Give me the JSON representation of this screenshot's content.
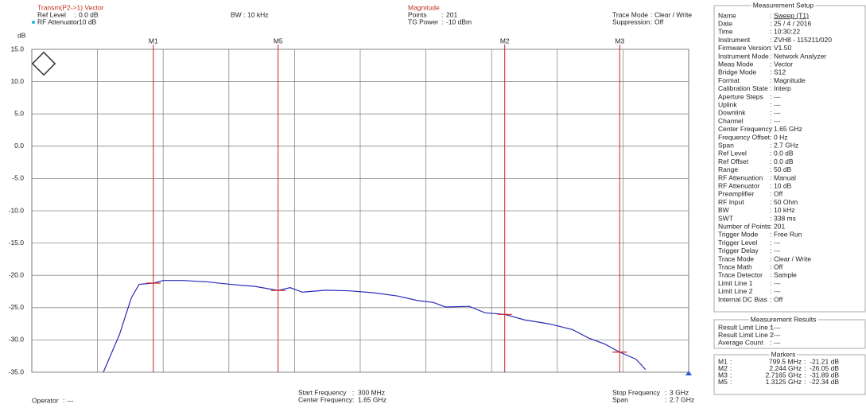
{
  "header": {
    "title": "Transm(P2->1) Vector",
    "ref_level": {
      "label": "Ref Level",
      "value": "0.0 dB"
    },
    "rf_attenuator": {
      "label": "RF Attenuator",
      "value": "10 dB"
    },
    "bw": {
      "label": "BW",
      "value": "10 kHz"
    },
    "format": "Magnitude",
    "points": {
      "label": "Points",
      "value": "201"
    },
    "tg_power": {
      "label": "TG Power",
      "value": "-10 dBm"
    },
    "trace_mode": {
      "label": "Trace Mode",
      "value": "Clear / Write"
    },
    "suppression": {
      "label": "Suppression",
      "value": "Off"
    }
  },
  "footer": {
    "operator": {
      "label": "Operator",
      "value": "---"
    },
    "start": {
      "label": "Start Frequency",
      "value": "300 MHz"
    },
    "center": {
      "label": "Center Frequency",
      "value": "1.65 GHz"
    },
    "stop": {
      "label": "Stop Frequency",
      "value": "3 GHz"
    },
    "span": {
      "label": "Span",
      "value": "2.7 GHz"
    }
  },
  "chart_data": {
    "type": "line",
    "y_unit": "dB",
    "xlim": [
      300,
      3000
    ],
    "ylim": [
      -35,
      15
    ],
    "yticks": [
      {
        "value": 15,
        "label": "15.0"
      },
      {
        "value": 10,
        "label": "10.0"
      },
      {
        "value": 5,
        "label": "5.0"
      },
      {
        "value": 0,
        "label": "0.0"
      },
      {
        "value": -5,
        "label": "-5.0"
      },
      {
        "value": -10,
        "label": "-10.0"
      },
      {
        "value": -15,
        "label": "-15.0"
      },
      {
        "value": -20,
        "label": "-20.0"
      },
      {
        "value": -25,
        "label": "-25.0"
      },
      {
        "value": -30,
        "label": "-30.0"
      },
      {
        "value": -35,
        "label": "-35.0"
      }
    ],
    "grid": true,
    "series": [
      {
        "color": "#2a2ab8",
        "x": [
          594,
          660,
          709,
          741,
          799.5,
          839,
          921,
          1019,
          1117,
          1215,
          1313,
          1362,
          1411,
          1509,
          1607,
          1706,
          1804,
          1885,
          1951,
          2000,
          2098,
          2163,
          2244,
          2326,
          2425,
          2523,
          2588,
          2653,
          2716.5,
          2784,
          2823
        ],
        "values": [
          -35,
          -29.2,
          -23.5,
          -21.4,
          -21.21,
          -20.8,
          -20.8,
          -21,
          -21.4,
          -21.7,
          -22.34,
          -21.9,
          -22.6,
          -22.3,
          -22.4,
          -22.7,
          -23.2,
          -23.9,
          -24.2,
          -24.9,
          -24.8,
          -25.8,
          -26.05,
          -26.9,
          -27.5,
          -28.4,
          -29.7,
          -30.6,
          -31.89,
          -33,
          -34.6
        ]
      }
    ],
    "markers": [
      {
        "name": "M1",
        "x": 799.5,
        "y": -21.21
      },
      {
        "name": "M5",
        "x": 1312.5,
        "y": -22.34
      },
      {
        "name": "M2",
        "x": 2244,
        "y": -26.05
      },
      {
        "name": "M3",
        "x": 2716.5,
        "y": -31.89
      }
    ],
    "marker_color": "#d02020"
  },
  "setup": {
    "title": "Measurement Setup",
    "rows": [
      [
        "Name",
        "Sweep (T1)"
      ],
      [
        "Date",
        "25 / 4 / 2016"
      ],
      [
        "Time",
        "10:30:22"
      ],
      [
        "Instrument",
        "ZVH8 - 115211/020"
      ],
      [
        "Firmware Version",
        "V1.50"
      ],
      [
        "Instrument Mode",
        "Network Analyzer"
      ],
      [
        "Meas Mode",
        "Vector"
      ],
      [
        "Bridge Mode",
        "S12"
      ],
      [
        "Format",
        "Magnitude"
      ],
      [
        "Calibration State",
        "Interp"
      ],
      [
        "Aperture Steps",
        "---"
      ],
      [
        "Uplink",
        "---"
      ],
      [
        "Downlink",
        "---"
      ],
      [
        "Channel",
        "---"
      ],
      [
        "Center Frequency",
        "1.65 GHz"
      ],
      [
        "Frequency Offset",
        "0 Hz"
      ],
      [
        "Span",
        "2.7 GHz"
      ],
      [
        "Ref Level",
        "0.0 dB"
      ],
      [
        "Ref Offset",
        "0.0 dB"
      ],
      [
        "Range",
        "50 dB"
      ],
      [
        "RF Attenuation",
        "Manual"
      ],
      [
        "RF Attenuator",
        "10 dB"
      ],
      [
        "Preamplifier",
        "Off"
      ],
      [
        "RF Input",
        "50 Ohm"
      ],
      [
        "BW",
        "10 kHz"
      ],
      [
        "SWT",
        "338 ms"
      ],
      [
        "Number of Points",
        "201"
      ],
      [
        "Trigger Mode",
        "Free Run"
      ],
      [
        "Trigger Level",
        "---"
      ],
      [
        "Trigger Delay",
        "---"
      ],
      [
        "Trace Mode",
        "Clear / Write"
      ],
      [
        "Trace Math",
        "Off"
      ],
      [
        "Trace Detector",
        "Sample"
      ],
      [
        "Limit Line 1",
        "---"
      ],
      [
        "Limit Line 2",
        "---"
      ],
      [
        "Internal DC Bias",
        "Off"
      ]
    ]
  },
  "results": {
    "title": "Measurement Results",
    "rows": [
      [
        "Result Limit Line 1",
        "---"
      ],
      [
        "Result Limit Line 2",
        "---"
      ],
      [
        "Average Count",
        "---"
      ]
    ]
  },
  "marker_table": {
    "title": "Markers",
    "rows": [
      [
        "M1",
        "799.5 MHz",
        "-21.21 dB"
      ],
      [
        "M2",
        "2.244 GHz",
        "-26.05 dB"
      ],
      [
        "M3",
        "2.7165 GHz",
        "-31.89 dB"
      ],
      [
        "M5",
        "1.3125 GHz",
        "-22.34 dB"
      ]
    ]
  }
}
